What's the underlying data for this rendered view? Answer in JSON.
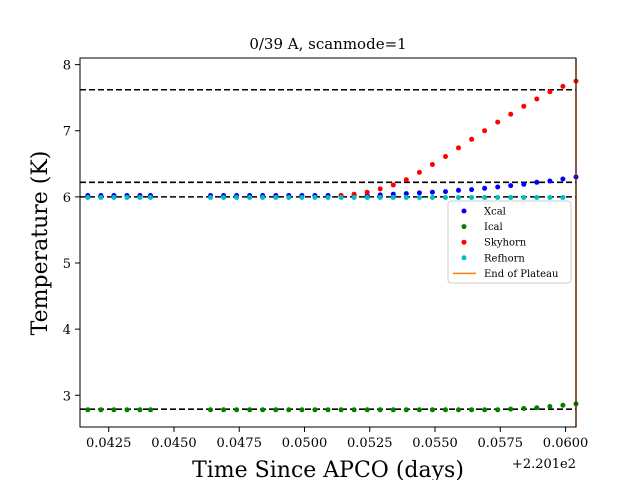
{
  "chart_data": {
    "type": "scatter",
    "title": "0/39 A, scanmode=1",
    "xlabel": "Time Since APCO (days)",
    "ylabel": "Temperature (K)",
    "x_offset_label": "+2.201e2",
    "xlim": [
      0.0414,
      0.0604
    ],
    "ylim": [
      2.52,
      8.1
    ],
    "xticks": [
      0.0425,
      0.045,
      0.0475,
      0.05,
      0.0525,
      0.055,
      0.0575,
      0.06
    ],
    "xtick_labels": [
      "0.0425",
      "0.0450",
      "0.0475",
      "0.0500",
      "0.0525",
      "0.0550",
      "0.0575",
      "0.0600"
    ],
    "yticks": [
      3,
      4,
      5,
      6,
      7,
      8
    ],
    "ytick_labels": [
      "3",
      "4",
      "5",
      "6",
      "7",
      "8"
    ],
    "hlines": [
      7.62,
      6.22,
      6.0,
      2.79
    ],
    "vline_x": 0.0604,
    "legend_placement": "center-right",
    "series": [
      {
        "name": "Xcal",
        "color": "#0000ff",
        "x": [
          0.0417,
          0.0422,
          0.0427,
          0.0432,
          0.0437,
          0.0441,
          0.0464,
          0.0469,
          0.0474,
          0.0479,
          0.0484,
          0.0489,
          0.0494,
          0.0499,
          0.0504,
          0.0509,
          0.0514,
          0.0519,
          0.0524,
          0.0529,
          0.0534,
          0.0539,
          0.0544,
          0.0549,
          0.0554,
          0.0559,
          0.0564,
          0.0569,
          0.0574,
          0.0579,
          0.0584,
          0.0589,
          0.0594,
          0.0599,
          0.0604
        ],
        "y": [
          6.02,
          6.02,
          6.02,
          6.02,
          6.02,
          6.02,
          6.02,
          6.02,
          6.02,
          6.02,
          6.02,
          6.02,
          6.02,
          6.02,
          6.02,
          6.02,
          6.02,
          6.02,
          6.02,
          6.03,
          6.04,
          6.05,
          6.06,
          6.07,
          6.08,
          6.1,
          6.11,
          6.13,
          6.15,
          6.17,
          6.19,
          6.22,
          6.24,
          6.27,
          6.3
        ]
      },
      {
        "name": "Ical",
        "color": "#008000",
        "x": [
          0.0417,
          0.0422,
          0.0427,
          0.0432,
          0.0437,
          0.0441,
          0.0464,
          0.0469,
          0.0474,
          0.0479,
          0.0484,
          0.0489,
          0.0494,
          0.0499,
          0.0504,
          0.0509,
          0.0514,
          0.0519,
          0.0524,
          0.0529,
          0.0534,
          0.0539,
          0.0544,
          0.0549,
          0.0554,
          0.0559,
          0.0564,
          0.0569,
          0.0574,
          0.0579,
          0.0584,
          0.0589,
          0.0594,
          0.0599,
          0.0604
        ],
        "y": [
          2.78,
          2.78,
          2.78,
          2.78,
          2.78,
          2.78,
          2.78,
          2.78,
          2.78,
          2.78,
          2.78,
          2.78,
          2.78,
          2.78,
          2.78,
          2.78,
          2.78,
          2.78,
          2.78,
          2.78,
          2.78,
          2.78,
          2.78,
          2.78,
          2.78,
          2.78,
          2.78,
          2.78,
          2.78,
          2.79,
          2.8,
          2.81,
          2.83,
          2.85,
          2.87
        ]
      },
      {
        "name": "Skyhorn",
        "color": "#ff0000",
        "x": [
          0.0514,
          0.0519,
          0.0524,
          0.0529,
          0.0534,
          0.0539,
          0.0544,
          0.0549,
          0.0554,
          0.0559,
          0.0564,
          0.0569,
          0.0574,
          0.0579,
          0.0584,
          0.0589,
          0.0594,
          0.0599,
          0.0604
        ],
        "y": [
          6.02,
          6.04,
          6.07,
          6.12,
          6.18,
          6.26,
          6.37,
          6.49,
          6.61,
          6.74,
          6.87,
          7.0,
          7.13,
          7.25,
          7.37,
          7.48,
          7.59,
          7.67,
          7.75
        ]
      },
      {
        "name": "Refhorn",
        "color": "#00bfbf",
        "x": [
          0.0417,
          0.0422,
          0.0427,
          0.0432,
          0.0437,
          0.0441,
          0.0464,
          0.0469,
          0.0474,
          0.0479,
          0.0484,
          0.0489,
          0.0494,
          0.0499,
          0.0504,
          0.0509,
          0.0514,
          0.0519,
          0.0524,
          0.0529,
          0.0534,
          0.0539,
          0.0544,
          0.0549,
          0.0554,
          0.0559,
          0.0564,
          0.0569,
          0.0574,
          0.0579,
          0.0584,
          0.0589,
          0.0594,
          0.0599
        ],
        "y": [
          5.99,
          5.99,
          5.99,
          5.99,
          5.99,
          5.99,
          5.99,
          5.99,
          5.99,
          5.99,
          5.99,
          5.99,
          5.99,
          5.99,
          5.99,
          5.99,
          5.99,
          5.99,
          5.99,
          5.99,
          5.99,
          5.99,
          5.99,
          5.99,
          5.99,
          5.99,
          5.99,
          5.99,
          5.99,
          5.99,
          5.99,
          5.99,
          5.99,
          5.99
        ]
      },
      {
        "name": "End of Plateau",
        "color": "#ff7f0e"
      }
    ]
  }
}
